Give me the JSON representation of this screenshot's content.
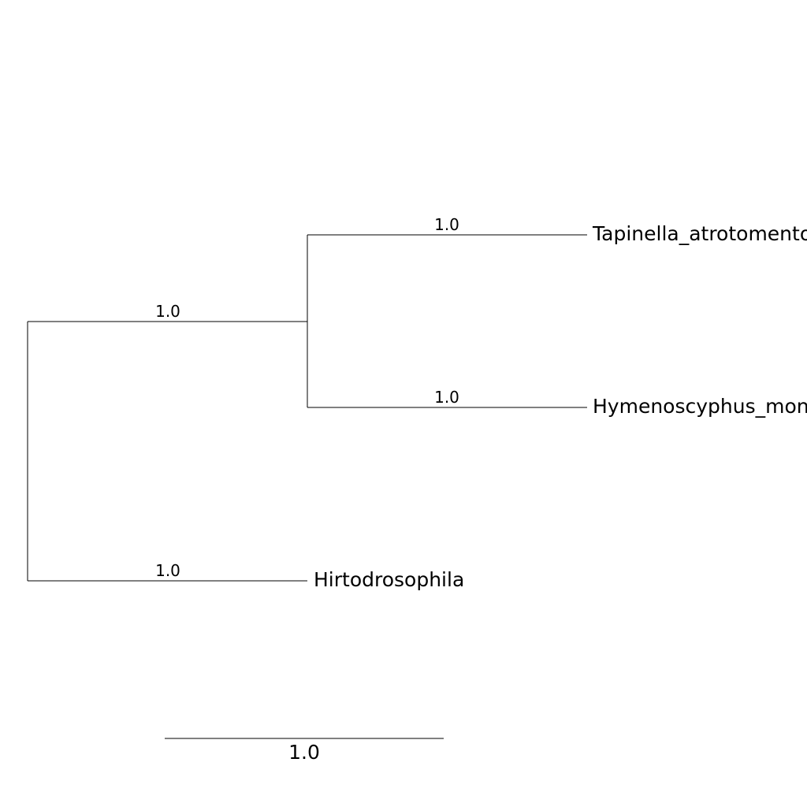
{
  "tree": {
    "leaves": {
      "tapinella": "Tapinella_atrotomentosa",
      "hymenoscyphus": "Hymenoscyphus_monotropae",
      "hirtodrosophila": "Hirtodrosophila"
    },
    "branch_labels": {
      "inner_clade": "1.0",
      "tapinella": "1.0",
      "hymenoscyphus": "1.0",
      "hirtodrosophila": "1.0"
    },
    "scale_bar": {
      "label": "1.0"
    },
    "colors": {
      "line": "#000000",
      "text": "#000000",
      "background": "#ffffff"
    }
  }
}
